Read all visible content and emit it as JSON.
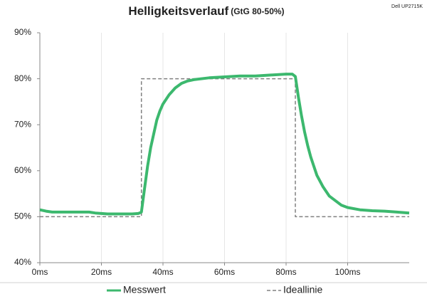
{
  "chart_data": {
    "type": "line",
    "title": "Helligkeitsverlauf",
    "subtitle": "(GtG 80-50%)",
    "annotation": "Dell UP2715K",
    "xlim": [
      0,
      120
    ],
    "xticks": [
      {
        "value": 0,
        "label": "0ms"
      },
      {
        "value": 20,
        "label": "20ms"
      },
      {
        "value": 40,
        "label": "40ms"
      },
      {
        "value": 60,
        "label": "60ms"
      },
      {
        "value": 80,
        "label": "80ms"
      },
      {
        "value": 100,
        "label": "100ms"
      }
    ],
    "ylim": [
      40,
      90
    ],
    "yticks": [
      {
        "value": 40,
        "label": "40%"
      },
      {
        "value": 50,
        "label": "50%"
      },
      {
        "value": 60,
        "label": "60%"
      },
      {
        "value": 70,
        "label": "70%"
      },
      {
        "value": 80,
        "label": "80%"
      },
      {
        "value": 90,
        "label": "90%"
      }
    ],
    "grid": "x",
    "series": [
      {
        "name": "Messwert",
        "color": "#3cb86e",
        "style": "solid",
        "x": [
          0,
          2,
          4,
          6,
          8,
          10,
          12,
          14,
          16,
          18,
          20,
          22,
          24,
          26,
          28,
          30,
          32,
          33,
          34,
          35,
          36,
          37,
          38,
          39,
          40,
          42,
          44,
          46,
          48,
          50,
          55,
          60,
          65,
          70,
          75,
          80,
          82,
          83,
          84,
          85,
          86,
          87,
          88,
          89,
          90,
          92,
          94,
          96,
          98,
          100,
          104,
          108,
          112,
          116,
          120
        ],
        "values": [
          51.5,
          51.2,
          51,
          51,
          51,
          51,
          51,
          51,
          51,
          50.8,
          50.7,
          50.6,
          50.6,
          50.6,
          50.6,
          50.6,
          50.7,
          51,
          56,
          61,
          65,
          68,
          71,
          73,
          74.5,
          76.5,
          78,
          79,
          79.5,
          79.8,
          80.2,
          80.4,
          80.6,
          80.6,
          80.8,
          81,
          81,
          80.5,
          76,
          72,
          68.5,
          65.5,
          63,
          61,
          59,
          56.5,
          54.5,
          53.5,
          52.5,
          52,
          51.5,
          51.3,
          51.2,
          51,
          50.8
        ]
      },
      {
        "name": "Ideallinie",
        "color": "#808080",
        "style": "dashed",
        "x": [
          0,
          33,
          33,
          83,
          83,
          120
        ],
        "values": [
          50,
          50,
          80,
          80,
          50,
          50
        ]
      }
    ]
  }
}
